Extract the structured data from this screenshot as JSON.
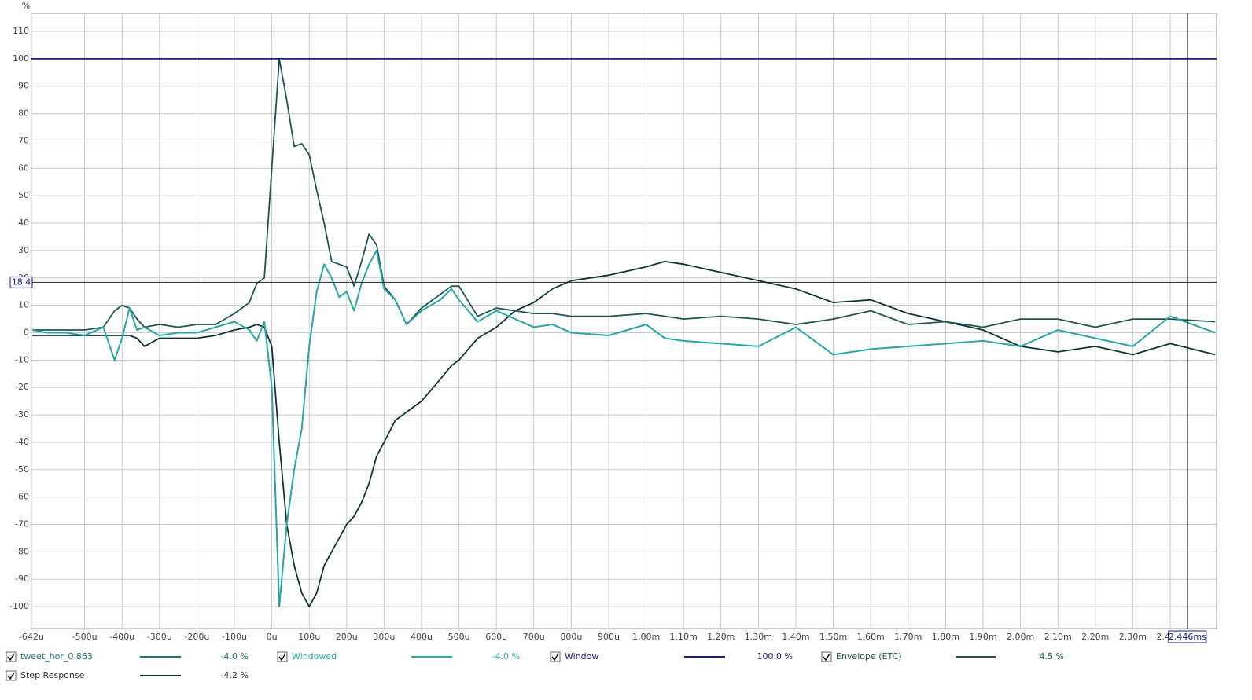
{
  "chart_data": {
    "type": "line",
    "y_label": "%",
    "xlim": [
      -0.642,
      2.524
    ],
    "ylim": [
      -108,
      116.6
    ],
    "xticks": [
      {
        "value": -0.642,
        "label": "-642u"
      },
      {
        "value": -0.5,
        "label": "-500u"
      },
      {
        "value": -0.4,
        "label": "-400u"
      },
      {
        "value": -0.3,
        "label": "-300u"
      },
      {
        "value": -0.2,
        "label": "-200u"
      },
      {
        "value": -0.1,
        "label": "-100u"
      },
      {
        "value": 0,
        "label": "0u"
      },
      {
        "value": 0.1,
        "label": "100u"
      },
      {
        "value": 0.2,
        "label": "200u"
      },
      {
        "value": 0.3,
        "label": "300u"
      },
      {
        "value": 0.4,
        "label": "400u"
      },
      {
        "value": 0.5,
        "label": "500u"
      },
      {
        "value": 0.6,
        "label": "600u"
      },
      {
        "value": 0.7,
        "label": "700u"
      },
      {
        "value": 0.8,
        "label": "800u"
      },
      {
        "value": 0.9,
        "label": "900u"
      },
      {
        "value": 1.0,
        "label": "1.00m"
      },
      {
        "value": 1.1,
        "label": "1.10m"
      },
      {
        "value": 1.2,
        "label": "1.20m"
      },
      {
        "value": 1.3,
        "label": "1.30m"
      },
      {
        "value": 1.4,
        "label": "1.40m"
      },
      {
        "value": 1.5,
        "label": "1.50m"
      },
      {
        "value": 1.6,
        "label": "1.60m"
      },
      {
        "value": 1.7,
        "label": "1.70m"
      },
      {
        "value": 1.8,
        "label": "1.80m"
      },
      {
        "value": 1.9,
        "label": "1.90m"
      },
      {
        "value": 2.0,
        "label": "2.00m"
      },
      {
        "value": 2.1,
        "label": "2.10m"
      },
      {
        "value": 2.2,
        "label": "2.20m"
      },
      {
        "value": 2.3,
        "label": "2.30m"
      },
      {
        "value": 2.4,
        "label": "2.40m"
      }
    ],
    "yticks": [
      -100,
      -90,
      -80,
      -70,
      -60,
      -50,
      -40,
      -30,
      -20,
      -10,
      0,
      10,
      20,
      30,
      40,
      50,
      60,
      70,
      80,
      90,
      100,
      110
    ],
    "grid": true,
    "cursors": {
      "x": {
        "value": 2.446,
        "label": "2.446ms"
      },
      "y": {
        "value": 18.4,
        "label": "18.4"
      }
    },
    "series": [
      {
        "name": "tweet_hor_0 863",
        "color": "#1f7373",
        "readout": "-4.0 %",
        "x": [
          -0.64,
          -0.6,
          -0.55,
          -0.5,
          -0.45,
          -0.42,
          -0.4,
          -0.38,
          -0.36,
          -0.34,
          -0.3,
          -0.25,
          -0.2,
          -0.15,
          -0.1,
          -0.06,
          -0.04,
          -0.02,
          0,
          0.02,
          0.04,
          0.06,
          0.08,
          0.1,
          0.12,
          0.14,
          0.16,
          0.18,
          0.2,
          0.22,
          0.24,
          0.26,
          0.28,
          0.3,
          0.33,
          0.36,
          0.4,
          0.45,
          0.48,
          0.5,
          0.55,
          0.6,
          0.65,
          0.7,
          0.75,
          0.8,
          0.9,
          1.0,
          1.05,
          1.1,
          1.2,
          1.3,
          1.4,
          1.5,
          1.6,
          1.7,
          1.8,
          1.9,
          2.0,
          2.1,
          2.2,
          2.3,
          2.4,
          2.52
        ],
        "values": [
          1,
          0,
          0,
          -1,
          2,
          -10,
          -2,
          9,
          1,
          2,
          -1,
          0,
          0,
          2,
          4,
          1,
          -3,
          4,
          -20,
          -100,
          -70,
          -50,
          -35,
          -5,
          15,
          25,
          20,
          13,
          15,
          8,
          18,
          25,
          30,
          16,
          12,
          3,
          8,
          12,
          16,
          12,
          4,
          8,
          5,
          2,
          3,
          0,
          -1,
          3,
          -2,
          -3,
          -4,
          -5,
          2,
          -8,
          -6,
          -5,
          -4,
          -3,
          -5,
          1,
          -2,
          -5,
          6,
          0
        ]
      },
      {
        "name": "Windowed",
        "color": "#22aaa8",
        "readout": "-4.0 %",
        "x": [
          -0.64,
          -0.6,
          -0.55,
          -0.5,
          -0.45,
          -0.42,
          -0.4,
          -0.38,
          -0.36,
          -0.34,
          -0.3,
          -0.25,
          -0.2,
          -0.15,
          -0.1,
          -0.06,
          -0.04,
          -0.02,
          0,
          0.02,
          0.04,
          0.06,
          0.08,
          0.1,
          0.12,
          0.14,
          0.16,
          0.18,
          0.2,
          0.22,
          0.24,
          0.26,
          0.28,
          0.3,
          0.33,
          0.36,
          0.4,
          0.45,
          0.48,
          0.5,
          0.55,
          0.6,
          0.65,
          0.7,
          0.75,
          0.8,
          0.9,
          1.0,
          1.05,
          1.1,
          1.2,
          1.3,
          1.4,
          1.5,
          1.6,
          1.7,
          1.8,
          1.9,
          2.0,
          2.1,
          2.2,
          2.3,
          2.4,
          2.52
        ],
        "values": [
          1,
          0,
          0,
          -1,
          2,
          -10,
          -2,
          9,
          1,
          2,
          -1,
          0,
          0,
          2,
          4,
          1,
          -3,
          4,
          -20,
          -100,
          -70,
          -50,
          -35,
          -5,
          15,
          25,
          20,
          13,
          15,
          8,
          18,
          25,
          30,
          16,
          12,
          3,
          8,
          12,
          16,
          12,
          4,
          8,
          5,
          2,
          3,
          0,
          -1,
          3,
          -2,
          -3,
          -4,
          -5,
          2,
          -8,
          -6,
          -5,
          -4,
          -3,
          -5,
          1,
          -2,
          -5,
          6,
          0
        ]
      },
      {
        "name": "Window",
        "color": "#1a1a8c",
        "readout": "100.0 %",
        "x": [
          -0.642,
          2.524
        ],
        "values": [
          100,
          100
        ]
      },
      {
        "name": "Envelope (ETC)",
        "color": "#1d5555",
        "readout": "4.5 %",
        "x": [
          -0.64,
          -0.6,
          -0.55,
          -0.5,
          -0.45,
          -0.42,
          -0.4,
          -0.38,
          -0.36,
          -0.34,
          -0.3,
          -0.25,
          -0.2,
          -0.15,
          -0.1,
          -0.06,
          -0.04,
          -0.02,
          0,
          0.02,
          0.04,
          0.06,
          0.08,
          0.1,
          0.12,
          0.14,
          0.16,
          0.18,
          0.2,
          0.22,
          0.24,
          0.26,
          0.28,
          0.3,
          0.33,
          0.36,
          0.4,
          0.45,
          0.48,
          0.5,
          0.55,
          0.6,
          0.65,
          0.7,
          0.75,
          0.8,
          0.9,
          1.0,
          1.05,
          1.1,
          1.2,
          1.3,
          1.4,
          1.5,
          1.6,
          1.7,
          1.8,
          1.9,
          2.0,
          2.1,
          2.2,
          2.3,
          2.4,
          2.52
        ],
        "values": [
          1,
          1,
          1,
          1,
          2,
          8,
          10,
          9,
          5,
          2,
          3,
          2,
          3,
          3,
          7,
          11,
          18,
          20,
          60,
          100,
          85,
          68,
          69,
          65,
          52,
          40,
          26,
          25,
          24,
          17,
          26,
          36,
          32,
          17,
          12,
          3,
          9,
          14,
          17,
          17,
          6,
          9,
          8,
          7,
          7,
          6,
          6,
          7,
          6,
          5,
          6,
          5,
          3,
          5,
          8,
          3,
          4,
          2,
          5,
          5,
          2,
          5,
          5,
          4
        ]
      },
      {
        "name": "Step Response",
        "color": "#0f3434",
        "readout": "-4.2 %",
        "x": [
          -0.64,
          -0.6,
          -0.55,
          -0.5,
          -0.45,
          -0.42,
          -0.4,
          -0.38,
          -0.36,
          -0.34,
          -0.3,
          -0.25,
          -0.2,
          -0.15,
          -0.1,
          -0.06,
          -0.04,
          -0.02,
          0,
          0.02,
          0.04,
          0.06,
          0.08,
          0.1,
          0.12,
          0.14,
          0.16,
          0.18,
          0.2,
          0.22,
          0.24,
          0.26,
          0.28,
          0.3,
          0.33,
          0.36,
          0.4,
          0.45,
          0.48,
          0.5,
          0.55,
          0.6,
          0.65,
          0.7,
          0.75,
          0.8,
          0.9,
          1.0,
          1.05,
          1.1,
          1.2,
          1.3,
          1.4,
          1.5,
          1.6,
          1.7,
          1.8,
          1.9,
          2.0,
          2.1,
          2.2,
          2.3,
          2.4,
          2.52
        ],
        "values": [
          -1,
          -1,
          -1,
          -1,
          -1,
          -1,
          -1,
          -1,
          -2,
          -5,
          -2,
          -2,
          -2,
          -1,
          1,
          2,
          3,
          2,
          -5,
          -40,
          -70,
          -85,
          -95,
          -100,
          -95,
          -85,
          -80,
          -75,
          -70,
          -67,
          -62,
          -55,
          -45,
          -40,
          -32,
          -29,
          -25,
          -17,
          -12,
          -10,
          -2,
          2,
          8,
          11,
          16,
          19,
          21,
          24,
          26,
          25,
          22,
          19,
          16,
          11,
          12,
          7,
          4,
          1,
          -5,
          -7,
          -5,
          -8,
          -4,
          -8
        ]
      }
    ]
  }
}
